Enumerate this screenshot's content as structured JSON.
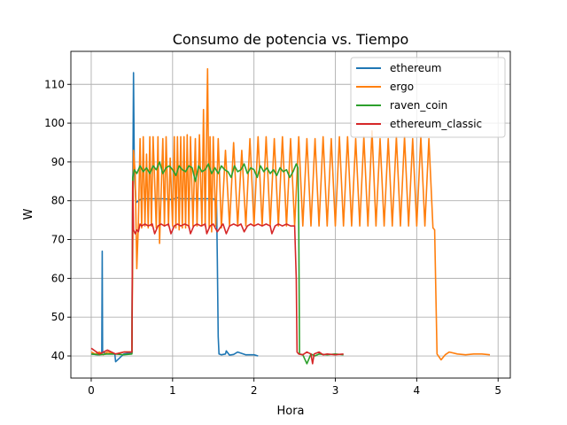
{
  "chart_data": {
    "type": "line",
    "title": "Consumo de potencia vs. Tiempo",
    "xlabel": "Hora",
    "ylabel": "W",
    "xlim": [
      -0.25,
      5.15
    ],
    "ylim": [
      34.3,
      118.5
    ],
    "xticks": [
      0,
      1,
      2,
      3,
      4,
      5
    ],
    "yticks": [
      40,
      50,
      60,
      70,
      80,
      90,
      100,
      110
    ],
    "grid": true,
    "legend_position": "top-right",
    "series": [
      {
        "name": "ethereum",
        "color": "#1f77b4",
        "x": [
          0.0,
          0.08,
          0.13,
          0.135,
          0.14,
          0.2,
          0.29,
          0.3,
          0.4,
          0.5,
          0.51,
          0.52,
          0.53,
          0.55,
          0.58,
          0.62,
          0.7,
          0.8,
          0.9,
          1.0,
          1.05,
          1.1,
          1.2,
          1.3,
          1.4,
          1.5,
          1.54,
          1.55,
          1.56,
          1.57,
          1.6,
          1.65,
          1.66,
          1.7,
          1.75,
          1.8,
          1.9,
          2.0,
          2.05
        ],
        "y": [
          40.5,
          40.3,
          40.5,
          67.0,
          41.0,
          40.5,
          40.5,
          38.5,
          40.5,
          40.8,
          80.0,
          113.0,
          88.0,
          79.5,
          80.0,
          80.5,
          80.5,
          80.5,
          80.5,
          80.3,
          80.8,
          80.5,
          80.5,
          80.5,
          80.5,
          80.5,
          80.0,
          65.0,
          45.0,
          40.5,
          40.3,
          40.5,
          41.3,
          40.2,
          40.4,
          41.0,
          40.3,
          40.3,
          40.0
        ]
      },
      {
        "name": "ergo",
        "color": "#ff7f0e",
        "x": [
          0.0,
          0.05,
          0.1,
          0.15,
          0.2,
          0.3,
          0.4,
          0.5,
          0.52,
          0.54,
          0.56,
          0.58,
          0.6,
          0.62,
          0.64,
          0.66,
          0.68,
          0.7,
          0.72,
          0.74,
          0.76,
          0.8,
          0.82,
          0.84,
          0.88,
          0.9,
          0.92,
          0.95,
          0.97,
          1.0,
          1.02,
          1.04,
          1.06,
          1.08,
          1.1,
          1.12,
          1.14,
          1.16,
          1.18,
          1.2,
          1.22,
          1.25,
          1.28,
          1.3,
          1.33,
          1.36,
          1.38,
          1.4,
          1.43,
          1.45,
          1.46,
          1.48,
          1.5,
          1.53,
          1.56,
          1.6,
          1.65,
          1.7,
          1.75,
          1.8,
          1.85,
          1.9,
          1.95,
          2.0,
          2.05,
          2.1,
          2.15,
          2.2,
          2.25,
          2.3,
          2.35,
          2.4,
          2.45,
          2.5,
          2.55,
          2.6,
          2.65,
          2.7,
          2.75,
          2.8,
          2.85,
          2.9,
          2.95,
          3.0,
          3.05,
          3.1,
          3.15,
          3.2,
          3.25,
          3.3,
          3.35,
          3.4,
          3.45,
          3.5,
          3.55,
          3.6,
          3.65,
          3.7,
          3.75,
          3.8,
          3.85,
          3.9,
          3.95,
          4.0,
          4.05,
          4.1,
          4.15,
          4.2,
          4.22,
          4.25,
          4.3,
          4.35,
          4.4,
          4.5,
          4.6,
          4.7,
          4.8,
          4.9
        ],
        "y": [
          41.0,
          40.5,
          41.0,
          40.3,
          41.0,
          40.5,
          41.0,
          41.0,
          93.0,
          87.0,
          62.5,
          74.0,
          96.0,
          73.0,
          96.5,
          73.5,
          92.0,
          73.0,
          96.5,
          73.5,
          96.5,
          73.0,
          96.5,
          69.0,
          96.0,
          73.5,
          96.5,
          73.5,
          91.0,
          73.5,
          96.5,
          73.0,
          96.5,
          72.5,
          96.5,
          73.0,
          96.5,
          73.0,
          97.0,
          73.0,
          96.5,
          73.5,
          96.0,
          73.5,
          97.0,
          73.5,
          103.5,
          73.5,
          114.0,
          73.0,
          96.5,
          72.0,
          96.5,
          73.5,
          96.0,
          73.0,
          93.0,
          73.5,
          95.0,
          73.5,
          93.0,
          73.5,
          96.0,
          73.5,
          96.5,
          73.5,
          96.5,
          73.5,
          96.0,
          73.5,
          96.5,
          73.5,
          96.0,
          73.5,
          96.5,
          73.5,
          96.0,
          73.5,
          96.0,
          73.5,
          96.5,
          73.5,
          96.0,
          73.5,
          96.5,
          73.5,
          96.5,
          73.5,
          96.0,
          73.5,
          96.5,
          73.5,
          98.0,
          73.5,
          96.0,
          73.5,
          96.0,
          73.5,
          96.5,
          73.5,
          96.5,
          73.5,
          96.0,
          73.5,
          96.5,
          73.5,
          96.0,
          73.0,
          72.5,
          40.5,
          39.0,
          40.3,
          41.0,
          40.5,
          40.3,
          40.5,
          40.5,
          40.3
        ]
      },
      {
        "name": "raven_coin",
        "color": "#2ca02c",
        "x": [
          0.0,
          0.1,
          0.2,
          0.3,
          0.4,
          0.5,
          0.51,
          0.53,
          0.56,
          0.6,
          0.64,
          0.68,
          0.72,
          0.76,
          0.8,
          0.84,
          0.88,
          0.92,
          0.96,
          1.0,
          1.04,
          1.08,
          1.12,
          1.16,
          1.2,
          1.24,
          1.28,
          1.32,
          1.36,
          1.4,
          1.44,
          1.48,
          1.52,
          1.56,
          1.6,
          1.64,
          1.68,
          1.72,
          1.76,
          1.8,
          1.84,
          1.88,
          1.92,
          1.96,
          2.0,
          2.04,
          2.08,
          2.12,
          2.16,
          2.2,
          2.24,
          2.28,
          2.32,
          2.36,
          2.4,
          2.44,
          2.48,
          2.52,
          2.54,
          2.55,
          2.56,
          2.6,
          2.65,
          2.7,
          2.75,
          2.8,
          2.9,
          3.0,
          3.1
        ],
        "y": [
          40.5,
          40.3,
          40.5,
          40.5,
          40.3,
          40.5,
          86.0,
          88.0,
          87.0,
          89.0,
          87.5,
          88.5,
          87.0,
          89.0,
          88.0,
          90.0,
          87.0,
          88.5,
          89.0,
          88.0,
          86.5,
          89.0,
          88.0,
          87.5,
          89.0,
          88.5,
          85.0,
          89.0,
          87.5,
          88.0,
          89.5,
          87.0,
          88.5,
          87.0,
          89.0,
          88.0,
          87.5,
          86.0,
          89.0,
          87.5,
          88.0,
          89.5,
          87.0,
          88.5,
          88.0,
          86.0,
          89.0,
          87.5,
          88.5,
          87.0,
          88.0,
          86.5,
          88.5,
          87.5,
          88.0,
          86.0,
          87.5,
          89.5,
          88.5,
          74.0,
          40.5,
          40.3,
          38.0,
          40.5,
          40.0,
          40.5,
          40.3,
          40.5,
          40.3
        ]
      },
      {
        "name": "ethereum_classic",
        "color": "#d62728",
        "x": [
          0.0,
          0.1,
          0.2,
          0.3,
          0.4,
          0.5,
          0.51,
          0.52,
          0.54,
          0.56,
          0.58,
          0.6,
          0.62,
          0.66,
          0.7,
          0.75,
          0.78,
          0.82,
          0.86,
          0.9,
          0.95,
          0.98,
          1.02,
          1.06,
          1.1,
          1.15,
          1.2,
          1.22,
          1.26,
          1.3,
          1.35,
          1.4,
          1.42,
          1.46,
          1.5,
          1.55,
          1.6,
          1.62,
          1.66,
          1.7,
          1.75,
          1.8,
          1.84,
          1.88,
          1.92,
          1.96,
          2.0,
          2.05,
          2.1,
          2.15,
          2.2,
          2.22,
          2.26,
          2.3,
          2.35,
          2.4,
          2.45,
          2.5,
          2.52,
          2.53,
          2.55,
          2.6,
          2.65,
          2.7,
          2.72,
          2.74,
          2.8,
          2.85,
          2.9,
          3.0,
          3.1
        ],
        "y": [
          42.0,
          40.5,
          41.5,
          40.5,
          41.0,
          41.0,
          85.0,
          72.5,
          71.5,
          72.5,
          72.0,
          74.0,
          73.5,
          74.0,
          73.5,
          74.0,
          71.5,
          73.5,
          74.0,
          73.5,
          74.0,
          71.5,
          73.5,
          74.0,
          73.5,
          74.0,
          73.5,
          71.5,
          73.5,
          74.0,
          73.5,
          74.0,
          71.5,
          73.5,
          74.0,
          72.0,
          73.5,
          74.0,
          71.5,
          73.5,
          74.0,
          73.5,
          74.0,
          72.0,
          73.5,
          74.0,
          73.5,
          74.0,
          73.5,
          74.0,
          73.5,
          71.5,
          73.5,
          74.0,
          73.5,
          74.0,
          73.5,
          73.5,
          60.0,
          41.0,
          40.5,
          40.3,
          41.0,
          40.5,
          38.0,
          40.5,
          41.0,
          40.3,
          40.5,
          40.3,
          40.5
        ]
      }
    ]
  }
}
